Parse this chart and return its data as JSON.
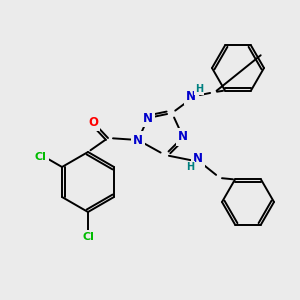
{
  "bg": "#ebebeb",
  "C": "#000000",
  "N": "#0000cc",
  "O": "#ff0000",
  "Cl": "#00bb00",
  "H_label": "#008080",
  "lw": 1.4,
  "fs": 8.5,
  "fs_small": 7.0
}
